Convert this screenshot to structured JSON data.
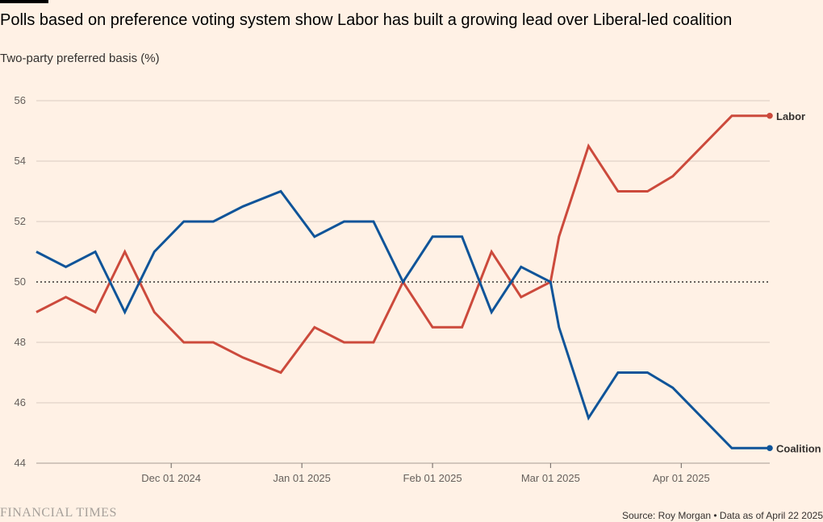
{
  "header": {
    "title": "Polls based on preference voting system show Labor has built a growing lead over Liberal-led coalition",
    "subtitle": "Two-party preferred basis (%)"
  },
  "footer": {
    "logo": "FINANCIAL TIMES",
    "source": "Source: Roy Morgan • Data as of April 22 2025"
  },
  "colors": {
    "background": "#FFF1E5",
    "labor": "#CC4A3C",
    "coalition": "#0F5499",
    "grid": "#D9CCC1",
    "reference_line": "#33302E"
  },
  "chart_data": {
    "type": "line",
    "title": "Polls based on preference voting system show Labor has built a growing lead over Liberal-led coalition",
    "ylabel": "Two-party preferred basis (%)",
    "xlabel": "",
    "ylim": [
      44,
      56
    ],
    "yticks": [
      44,
      46,
      48,
      50,
      52,
      54,
      56
    ],
    "reference_line": 50,
    "grid": true,
    "legend": "direct labels at line ends (right)",
    "xlim": [
      "2024-10-30",
      "2025-04-22"
    ],
    "xticks": [
      {
        "date": "2024-12-01",
        "label": "Dec 01 2024"
      },
      {
        "date": "2025-01-01",
        "label": "Jan 01 2025"
      },
      {
        "date": "2025-02-01",
        "label": "Feb 01 2025"
      },
      {
        "date": "2025-03-01",
        "label": "Mar 01 2025"
      },
      {
        "date": "2025-04-01",
        "label": "Apr 01 2025"
      }
    ],
    "x": [
      "2024-10-30",
      "2024-11-06",
      "2024-11-13",
      "2024-11-20",
      "2024-11-27",
      "2024-12-04",
      "2024-12-11",
      "2024-12-18",
      "2024-12-27",
      "2025-01-04",
      "2025-01-11",
      "2025-01-18",
      "2025-01-25",
      "2025-02-01",
      "2025-02-08",
      "2025-02-15",
      "2025-02-22",
      "2025-03-01",
      "2025-03-03",
      "2025-03-10",
      "2025-03-17",
      "2025-03-24",
      "2025-03-30",
      "2025-04-06",
      "2025-04-13",
      "2025-04-22"
    ],
    "series": [
      {
        "name": "Labor",
        "color": "#CC4A3C",
        "values": [
          49,
          49.5,
          49,
          51,
          49,
          48,
          48,
          47.5,
          47,
          48.5,
          48,
          48,
          50,
          48.5,
          48.5,
          51,
          49.5,
          50,
          51.5,
          54.5,
          53,
          53,
          53.5,
          54.5,
          55.5,
          55.5
        ]
      },
      {
        "name": "Coalition",
        "color": "#0F5499",
        "values": [
          51,
          50.5,
          51,
          49,
          51,
          52,
          52,
          52.5,
          53,
          51.5,
          52,
          52,
          50,
          51.5,
          51.5,
          49,
          50.5,
          50,
          48.5,
          45.5,
          47,
          47,
          46.5,
          45.5,
          44.5,
          44.5
        ]
      }
    ]
  }
}
